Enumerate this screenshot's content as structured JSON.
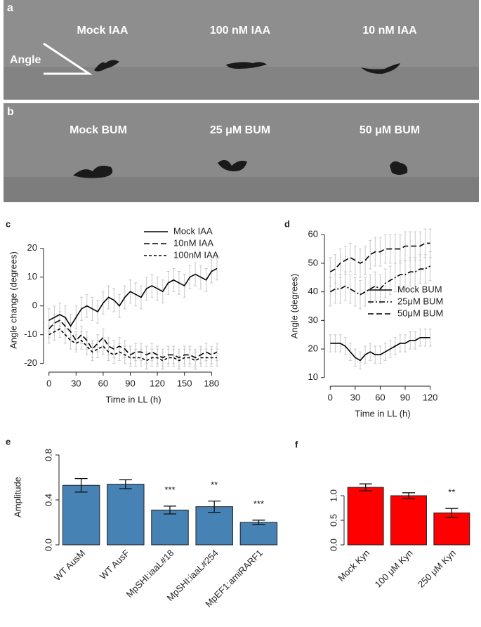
{
  "photos": [
    {
      "label": "a",
      "captions": [
        "Mock IAA",
        "100 nM IAA",
        "10 nM IAA"
      ],
      "annotation": "Angle"
    },
    {
      "label": "b",
      "captions": [
        "Mock BUM",
        "25 μM BUM",
        "50 μM BUM"
      ]
    }
  ],
  "chart_data": [
    {
      "type": "line",
      "title": "c",
      "x_label": "Time in LL (h)",
      "y_label": "Angle change (degrees)",
      "legend": "upper center",
      "x": [
        0,
        6,
        12,
        18,
        24,
        30,
        36,
        42,
        48,
        54,
        60,
        66,
        72,
        78,
        84,
        90,
        96,
        102,
        108,
        114,
        120,
        126,
        132,
        138,
        144,
        150,
        156,
        162,
        168,
        174,
        180,
        186
      ],
      "series": [
        {
          "name": "Mock IAA",
          "color": "#000000",
          "style": "solid",
          "values": [
            -5,
            -4,
            -3,
            -4,
            -7,
            -4,
            -1,
            0,
            -1,
            -2,
            1,
            3,
            2,
            0,
            3,
            5,
            4,
            3,
            6,
            7,
            6,
            5,
            8,
            9,
            8,
            7,
            10,
            11,
            10,
            9,
            12,
            13
          ],
          "errors": [
            4,
            4,
            4,
            4,
            4,
            4,
            4,
            4,
            4,
            4,
            4,
            4,
            4,
            4,
            4,
            4,
            4,
            4,
            4,
            4,
            4,
            4,
            4,
            4,
            4,
            4,
            4,
            4,
            4,
            4,
            4,
            4
          ]
        },
        {
          "name": "10nM IAA",
          "color": "#000000",
          "style": "dashed",
          "values": [
            -8,
            -6,
            -5,
            -7,
            -9,
            -12,
            -10,
            -12,
            -15,
            -13,
            -11,
            -14,
            -15,
            -14,
            -15,
            -17,
            -16,
            -16,
            -17,
            -16,
            -17,
            -18,
            -17,
            -17,
            -18,
            -17,
            -17,
            -18,
            -17,
            -16,
            -17,
            -16
          ],
          "errors": [
            3,
            3,
            3,
            3,
            3,
            3,
            3,
            3,
            3,
            3,
            3,
            3,
            3,
            3,
            3,
            3,
            3,
            3,
            3,
            3,
            3,
            3,
            3,
            3,
            3,
            3,
            3,
            3,
            3,
            3,
            3,
            3
          ]
        },
        {
          "name": "100nM IAA",
          "color": "#000000",
          "style": "short-dashed",
          "values": [
            -10,
            -9,
            -8,
            -10,
            -12,
            -13,
            -12,
            -14,
            -16,
            -15,
            -14,
            -16,
            -17,
            -16,
            -17,
            -18,
            -18,
            -18,
            -19,
            -18,
            -18,
            -19,
            -18,
            -18,
            -19,
            -18,
            -18,
            -19,
            -18,
            -18,
            -18,
            -18
          ],
          "errors": [
            3,
            3,
            3,
            3,
            3,
            3,
            3,
            3,
            3,
            3,
            3,
            3,
            3,
            3,
            3,
            3,
            3,
            3,
            3,
            3,
            3,
            3,
            3,
            3,
            3,
            3,
            3,
            3,
            3,
            3,
            3,
            3
          ]
        }
      ],
      "xlim": [
        -6,
        193
      ],
      "xticks": [
        0,
        30,
        60,
        90,
        120,
        150,
        180
      ],
      "ylim": [
        -23,
        27
      ],
      "yticks": [
        -20,
        -10,
        0,
        10,
        20
      ]
    },
    {
      "type": "line",
      "title": "d",
      "x_label": "Time in LL (h)",
      "y_label": "Angle (degrees)",
      "legend": "center right",
      "x": [
        0,
        6,
        12,
        18,
        24,
        30,
        36,
        42,
        48,
        54,
        60,
        66,
        72,
        78,
        84,
        90,
        96,
        102,
        108,
        114,
        120
      ],
      "series": [
        {
          "name": "Mock BUM",
          "color": "#000000",
          "style": "solid",
          "values": [
            22,
            22,
            22,
            21,
            19,
            17,
            16,
            18,
            19,
            18,
            18,
            19,
            20,
            21,
            22,
            22,
            23,
            23,
            24,
            24,
            24
          ],
          "errors": [
            3,
            3,
            3,
            3,
            3,
            3,
            3,
            3,
            3,
            3,
            3,
            3,
            3,
            3,
            3,
            3,
            3,
            3,
            3,
            3,
            3
          ]
        },
        {
          "name": "25μM BUM",
          "color": "#000000",
          "style": "dot-dash",
          "values": [
            40,
            41,
            41,
            42,
            41,
            40,
            39,
            40,
            41,
            42,
            41,
            43,
            44,
            45,
            46,
            46,
            47,
            47,
            48,
            48,
            49
          ],
          "errors": [
            5,
            5,
            5,
            5,
            5,
            5,
            5,
            5,
            5,
            5,
            5,
            5,
            5,
            5,
            5,
            5,
            5,
            5,
            5,
            5,
            5
          ]
        },
        {
          "name": "50μM BUM",
          "color": "#000000",
          "style": "dashed",
          "values": [
            47,
            48,
            50,
            51,
            52,
            51,
            50,
            51,
            53,
            54,
            54,
            55,
            55,
            55,
            55,
            56,
            56,
            56,
            56,
            57,
            57
          ],
          "errors": [
            5,
            5,
            5,
            5,
            5,
            5,
            5,
            5,
            5,
            5,
            5,
            5,
            5,
            5,
            5,
            5,
            5,
            5,
            5,
            5,
            5
          ]
        }
      ],
      "xlim": [
        -7,
        133
      ],
      "xticks": [
        0,
        30,
        60,
        90,
        120
      ],
      "ylim": [
        7,
        63
      ],
      "yticks": [
        10,
        20,
        30,
        40,
        50,
        60
      ]
    },
    {
      "type": "bar",
      "title": "e",
      "y_label": "Amplitude",
      "color": "#4682b4",
      "categories": [
        "WT AusM",
        "WT AusF",
        "MpSHI:iaaL#18",
        "MpSHI:iaaL#254",
        "MpEF1:amiRARF1"
      ],
      "values": [
        0.53,
        0.54,
        0.31,
        0.34,
        0.2
      ],
      "errors": [
        0.06,
        0.04,
        0.035,
        0.05,
        0.02
      ],
      "annotations": [
        null,
        null,
        "***",
        "**",
        "***"
      ],
      "ylim": [
        0,
        0.85
      ],
      "yticks": [
        {
          "value": 0,
          "label": "0.0"
        },
        {
          "value": 0.4,
          "label": "0.4"
        },
        {
          "value": 0.8,
          "label": "0.8"
        }
      ]
    },
    {
      "type": "bar",
      "title": "f",
      "color": "#ff0000",
      "categories": [
        "Mock Kyn",
        "100 μM Kyn",
        "250 μM Kyn"
      ],
      "values": [
        1.17,
        1.0,
        0.65
      ],
      "errors": [
        0.07,
        0.06,
        0.09
      ],
      "annotations": [
        null,
        null,
        "**"
      ],
      "ylim": [
        0,
        1.55
      ],
      "yticks": [
        {
          "value": 0,
          "label": "0.0"
        },
        {
          "value": 0.5,
          "label": "0.5"
        },
        {
          "value": 1,
          "label": "1.0"
        }
      ]
    }
  ]
}
